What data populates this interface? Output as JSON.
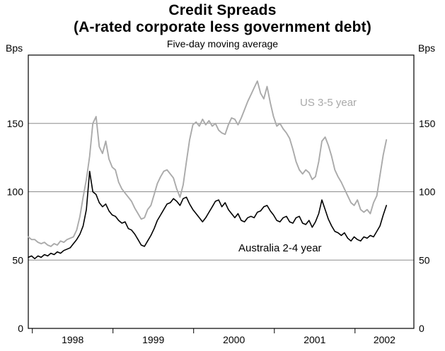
{
  "chart_data": {
    "type": "line",
    "title": "Credit Spreads",
    "title_line2": "(A-rated corporate less government debt)",
    "subtitle": "Five-day moving average",
    "unit": "Bps",
    "x_range": [
      1997.95,
      2002.73
    ],
    "y_range": [
      0,
      200
    ],
    "y_gridlines": [
      50,
      100,
      150
    ],
    "y_tick_labels": [
      0,
      50,
      100,
      150
    ],
    "x_tick_years": [
      1998,
      1999,
      2000,
      2001,
      2002
    ],
    "grid": "horizontal only",
    "legend_position": "inline annotations",
    "x_start": 1997.95,
    "x_step": 0.04,
    "series": [
      {
        "name": "US 3-5 year",
        "color": "#aaaaaa",
        "values": [
          67,
          65,
          65,
          63,
          62,
          63,
          61,
          60,
          62,
          61,
          64,
          63,
          65,
          66,
          67,
          72,
          82,
          96,
          109,
          126,
          150,
          155,
          133,
          128,
          137,
          124,
          118,
          116,
          107,
          102,
          99,
          96,
          93,
          88,
          84,
          80,
          81,
          87,
          90,
          98,
          106,
          111,
          115,
          116,
          113,
          110,
          102,
          96,
          105,
          122,
          138,
          149,
          151,
          148,
          153,
          149,
          152,
          148,
          150,
          145,
          143,
          142,
          149,
          154,
          153,
          149,
          154,
          160,
          166,
          171,
          176,
          181,
          172,
          168,
          177,
          165,
          155,
          148,
          150,
          146,
          143,
          139,
          131,
          122,
          116,
          113,
          116,
          114,
          109,
          111,
          122,
          137,
          140,
          134,
          126,
          116,
          111,
          107,
          102,
          97,
          92,
          90,
          94,
          87,
          85,
          87,
          84,
          92,
          97,
          112,
          127,
          138
        ]
      },
      {
        "name": "Australia 2-4 year",
        "color": "#000000",
        "values": [
          52,
          53,
          51,
          53,
          52,
          54,
          53,
          55,
          54,
          56,
          55,
          57,
          58,
          59,
          62,
          65,
          69,
          75,
          87,
          115,
          100,
          98,
          92,
          89,
          91,
          86,
          83,
          82,
          79,
          77,
          78,
          73,
          72,
          69,
          65,
          61,
          60,
          64,
          68,
          73,
          79,
          83,
          87,
          91,
          92,
          95,
          93,
          90,
          95,
          96,
          91,
          87,
          84,
          81,
          78,
          81,
          85,
          89,
          93,
          94,
          89,
          92,
          87,
          84,
          81,
          84,
          79,
          78,
          81,
          82,
          81,
          85,
          86,
          89,
          90,
          86,
          83,
          79,
          78,
          81,
          82,
          78,
          77,
          81,
          82,
          77,
          76,
          79,
          74,
          78,
          84,
          94,
          87,
          80,
          75,
          71,
          70,
          68,
          70,
          66,
          64,
          67,
          65,
          64,
          67,
          66,
          68,
          67,
          71,
          75,
          83,
          90
        ]
      }
    ]
  }
}
